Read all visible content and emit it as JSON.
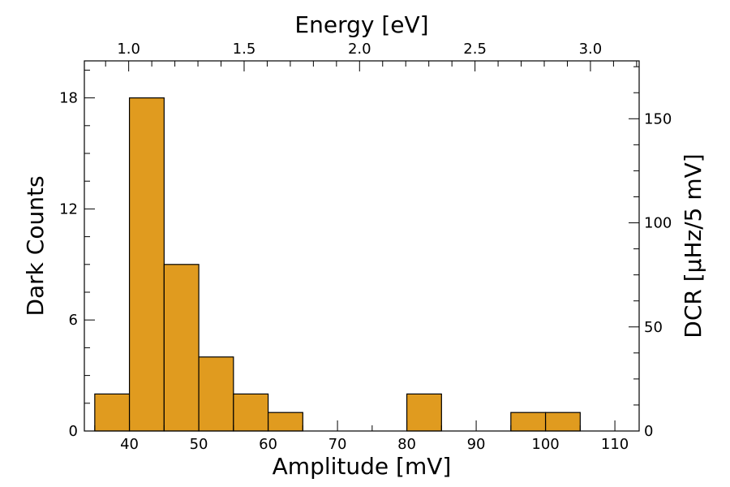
{
  "chart_data": {
    "type": "bar",
    "bar_color": "#e09b1f",
    "edge_color": "#000000",
    "xlabel": "Amplitude [mV]",
    "ylabel": "Dark Counts",
    "top_xlabel": "Energy [eV]",
    "right_ylabel": "DCR [µHz/5 mV]",
    "xlim": [
      33.5,
      113.5
    ],
    "ylim": [
      0,
      20
    ],
    "right_ylim": [
      0,
      177.8
    ],
    "top_xlim": [
      0.808,
      3.211
    ],
    "x_ticks": [
      40,
      50,
      60,
      70,
      80,
      90,
      100,
      110
    ],
    "x_tick_labels": [
      "40",
      "50",
      "60",
      "70",
      "80",
      "90",
      "100",
      "110"
    ],
    "y_ticks": [
      0,
      6,
      12,
      18
    ],
    "y_tick_labels": [
      "0",
      "6",
      "12",
      "18"
    ],
    "right_y_ticks": [
      0,
      50,
      100,
      150
    ],
    "right_y_tick_labels": [
      "0",
      "50",
      "100",
      "150"
    ],
    "top_x_ticks": [
      1.0,
      1.5,
      2.0,
      2.5,
      3.0
    ],
    "top_x_tick_labels": [
      "1.0",
      "1.5",
      "2.0",
      "2.5",
      "3.0"
    ],
    "bin_width": 5,
    "bins": [
      {
        "x_start": 35,
        "x_end": 40,
        "count": 2
      },
      {
        "x_start": 40,
        "x_end": 45,
        "count": 18
      },
      {
        "x_start": 45,
        "x_end": 50,
        "count": 9
      },
      {
        "x_start": 50,
        "x_end": 55,
        "count": 4
      },
      {
        "x_start": 55,
        "x_end": 60,
        "count": 2
      },
      {
        "x_start": 60,
        "x_end": 65,
        "count": 1
      },
      {
        "x_start": 80,
        "x_end": 85,
        "count": 2
      },
      {
        "x_start": 95,
        "x_end": 100,
        "count": 1
      },
      {
        "x_start": 100,
        "x_end": 105,
        "count": 1
      }
    ]
  }
}
